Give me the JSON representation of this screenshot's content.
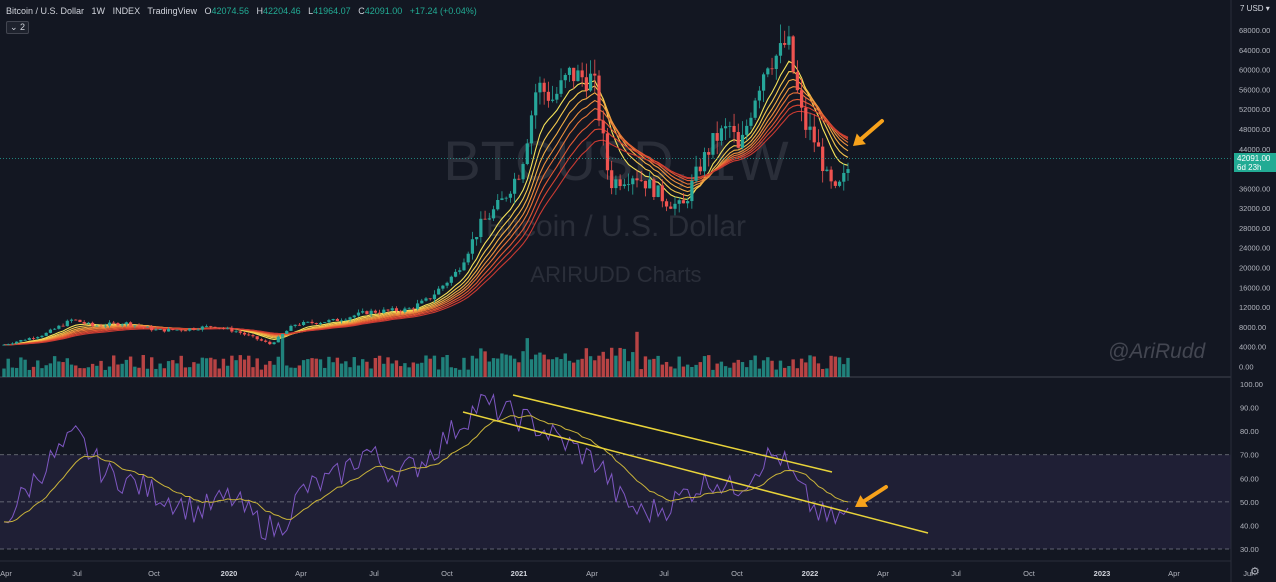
{
  "header": {
    "symbol": "Bitcoin / U.S. Dollar",
    "interval": "1W",
    "exchange": "INDEX",
    "source": "TradingView",
    "open_label": "O",
    "open": "42074.56",
    "high_label": "H",
    "high": "42204.46",
    "low_label": "L",
    "low": "41964.07",
    "close_label": "C",
    "close": "42091.00",
    "change": "+17.24 (+0.04%)",
    "indicators_toggle": "⌄ 2"
  },
  "currency_selector": "7 USD ▾",
  "watermark": {
    "ticker": "BTCUSD, 1W",
    "name": "Bitcoin / U.S. Dollar",
    "brand": "ARIRUDD Charts"
  },
  "signature": "@AriRudd",
  "last_price": {
    "value": "42091.00",
    "countdown": "6d 23h"
  },
  "price_axis": [
    "68000.00",
    "64000.00",
    "60000.00",
    "56000.00",
    "52000.00",
    "48000.00",
    "44000.00",
    "40000.00",
    "36000.00",
    "32000.00",
    "28000.00",
    "24000.00",
    "20000.00",
    "16000.00",
    "12000.00",
    "8000.00",
    "4000.00",
    "0.00"
  ],
  "rsi_axis": [
    "100.00",
    "90.00",
    "80.00",
    "70.00",
    "60.00",
    "50.00",
    "40.00",
    "30.00"
  ],
  "time_axis": [
    "Apr",
    "Jul",
    "Oct",
    "2020",
    "Apr",
    "Jul",
    "Oct",
    "2021",
    "Apr",
    "Jul",
    "Oct",
    "2022",
    "Apr",
    "Jul",
    "Oct",
    "2023",
    "Apr",
    "Jul"
  ],
  "colors": {
    "up": "#26a69a",
    "down": "#ef5350",
    "rsi": "#7e57c2",
    "rsi_ma": "#c9b33a",
    "trendline": "#e8d33a",
    "arrow": "#f7a21b",
    "background": "#131722",
    "last_price_tag": "#22ab94"
  },
  "icons": {
    "settings": "gear-icon"
  }
}
